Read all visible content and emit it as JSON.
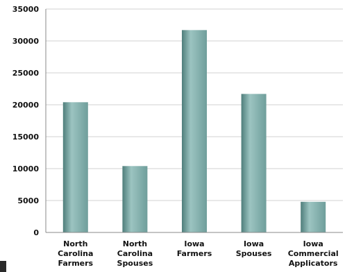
{
  "chart_data": {
    "type": "bar",
    "categories": [
      [
        "North",
        "Carolina",
        "Farmers"
      ],
      [
        "North",
        "Carolina",
        "Spouses"
      ],
      [
        "Iowa",
        "Farmers"
      ],
      [
        "Iowa",
        "Spouses"
      ],
      [
        "Iowa",
        "Commercial",
        "Applicators"
      ]
    ],
    "values": [
      20400,
      10400,
      31700,
      21700,
      4800
    ],
    "ylim": [
      0,
      35000
    ],
    "yticks": [
      0,
      5000,
      10000,
      15000,
      20000,
      25000,
      30000,
      35000
    ],
    "grid": true,
    "legend": "none",
    "bar_color": "#6f9e9b",
    "bar_highlight": "#9cc4c1",
    "bar_shadow": "#4f7e7b",
    "grid_color": "#d0d0d0",
    "axis_color": "#888888"
  }
}
